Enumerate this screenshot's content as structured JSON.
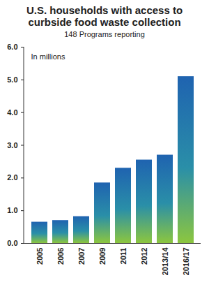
{
  "chart_data": {
    "type": "bar",
    "title": "U.S. households with access to curbside food waste collection",
    "subtitle": "148 Programs reporting",
    "annotation": "In millions",
    "categories": [
      "2005",
      "2006",
      "2007",
      "2009",
      "2011",
      "2012",
      "2013/14",
      "2016/17"
    ],
    "values": [
      0.65,
      0.7,
      0.82,
      1.85,
      2.3,
      2.55,
      2.7,
      5.1
    ],
    "color": "#1f63b0",
    "ylim": [
      0,
      6
    ],
    "yticks": [
      0,
      1,
      2,
      3,
      4,
      5,
      6
    ],
    "grid": false
  }
}
